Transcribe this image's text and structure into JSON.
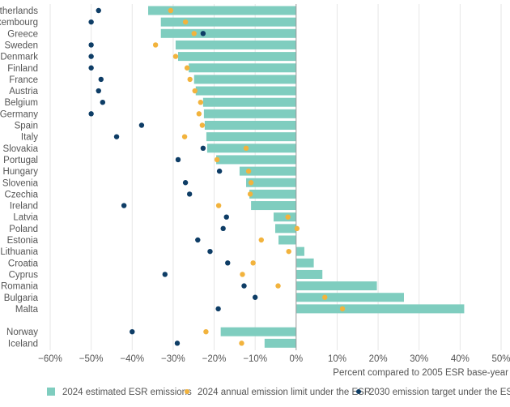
{
  "chart_data": {
    "type": "bar",
    "orientation": "horizontal",
    "xlabel": "Percent compared to 2005 ESR base-year",
    "xlim": [
      -60,
      50
    ],
    "xticks": [
      -60,
      -50,
      -40,
      -30,
      -20,
      -10,
      0,
      10,
      20,
      30,
      40,
      50
    ],
    "xtick_labels": [
      "−60%",
      "−50%",
      "−40%",
      "−30%",
      "−20%",
      "−10%",
      "0%",
      "10%",
      "20%",
      "30%",
      "40%",
      "50%"
    ],
    "grid": true,
    "legend_position": "bottom",
    "colors": {
      "bars": "#7fcdbf",
      "limit": "#f2b33d",
      "target": "#0e3d66"
    },
    "categories": [
      "Netherlands",
      "Luxembourg",
      "Greece",
      "Sweden",
      "Denmark",
      "Finland",
      "France",
      "Austria",
      "Belgium",
      "Germany",
      "Spain",
      "Italy",
      "Slovakia",
      "Portugal",
      "Hungary",
      "Slovenia",
      "Czechia",
      "Ireland",
      "Latvia",
      "Poland",
      "Estonia",
      "Lithuania",
      "Croatia",
      "Cyprus",
      "Romania",
      "Bulgaria",
      "Malta",
      "Norway",
      "Iceland"
    ],
    "series": [
      {
        "name": "2024 estimated ESR emissions",
        "kind": "bar",
        "values": [
          -36.1,
          -33,
          -33,
          -29.4,
          -28.8,
          -26.2,
          -24.9,
          -24.5,
          -22.7,
          -22.5,
          -22.3,
          -21.9,
          -21.7,
          -19.5,
          -13.8,
          -12.2,
          -11.4,
          -11,
          -5.5,
          -5.1,
          -4.3,
          2,
          4.3,
          6.4,
          19.7,
          26.3,
          41,
          -18.4,
          -7.7
        ]
      },
      {
        "name": "2024 annual emission limit under the ESR",
        "kind": "dot",
        "values": [
          -30.6,
          -27,
          -24.9,
          -34.3,
          -29.4,
          -26.6,
          -25.9,
          -24.7,
          -23.3,
          -23.7,
          -22.9,
          -27.2,
          -12.2,
          -19.3,
          -11.6,
          -11,
          -11.2,
          -18.9,
          -2,
          0.2,
          -8.5,
          -1.8,
          -10.5,
          -13.1,
          -4.4,
          7,
          11.3,
          -22,
          -13.3
        ]
      },
      {
        "name": "2030 emission target under the ESR",
        "kind": "dot",
        "values": [
          -48.2,
          -50,
          -22.7,
          -50,
          -50,
          -50,
          -47.6,
          -48.2,
          -47.2,
          -50,
          -37.7,
          -43.8,
          -22.7,
          -28.8,
          -18.7,
          -27,
          -26,
          -42,
          -17,
          -17.8,
          -24,
          -21,
          -16.7,
          -32,
          -12.7,
          -10,
          -19,
          -40,
          -29
        ]
      }
    ]
  }
}
